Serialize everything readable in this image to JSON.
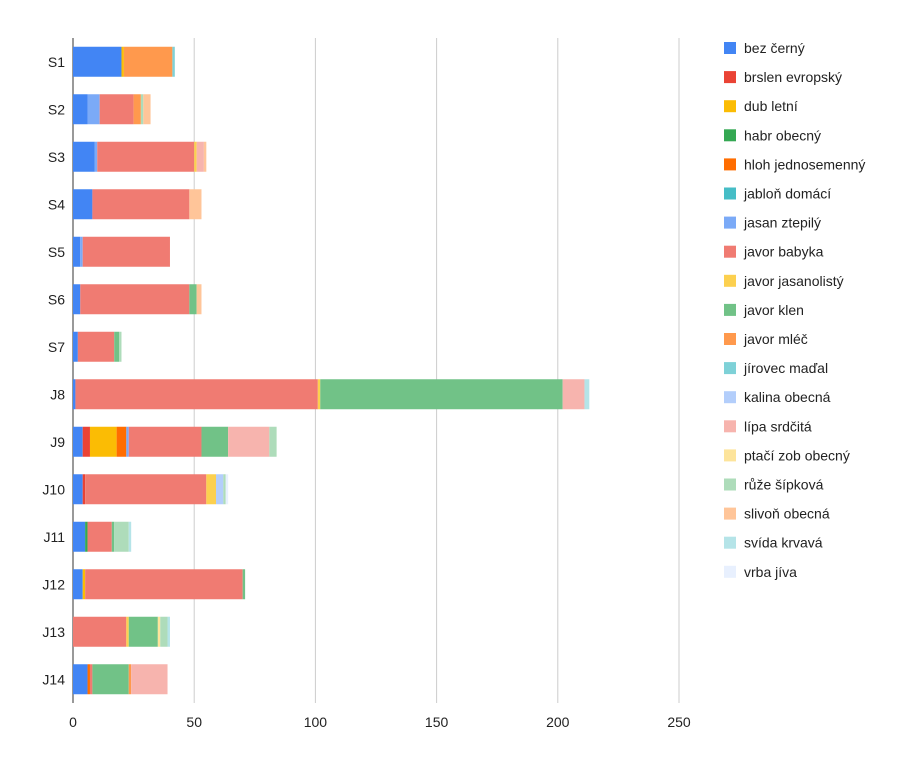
{
  "chart_data": {
    "type": "bar",
    "orientation": "horizontal",
    "stacked": true,
    "title": "",
    "xlabel": "",
    "ylabel": "",
    "xlim": [
      0,
      250
    ],
    "xticks": [
      0,
      50,
      100,
      150,
      200,
      250
    ],
    "grid": true,
    "legend_position": "right",
    "categories": [
      "S1",
      "S2",
      "S3",
      "S4",
      "S5",
      "S6",
      "S7",
      "J8",
      "J9",
      "J10",
      "J11",
      "J12",
      "J13",
      "J14"
    ],
    "series": [
      {
        "name": "bez černý",
        "color": "#4285f4",
        "values": [
          20,
          6,
          9,
          8,
          3,
          3,
          2,
          1,
          4,
          4,
          5,
          4,
          0,
          6
        ]
      },
      {
        "name": "brslen evropský",
        "color": "#ea4335",
        "values": [
          0,
          0,
          0,
          0,
          0,
          0,
          0,
          0,
          3,
          1,
          0,
          0,
          0,
          0
        ]
      },
      {
        "name": "dub letní",
        "color": "#fbbc04",
        "values": [
          1,
          0,
          0,
          0,
          0,
          0,
          0,
          0,
          11,
          0,
          0,
          1,
          0,
          0
        ]
      },
      {
        "name": "habr obecný",
        "color": "#34a853",
        "values": [
          0,
          0,
          0,
          0,
          0,
          0,
          0,
          0,
          0,
          0,
          1,
          0,
          0,
          0
        ]
      },
      {
        "name": "hloh jednosemenný",
        "color": "#ff6d01",
        "values": [
          0,
          0,
          0,
          0,
          0,
          0,
          0,
          0,
          4,
          0,
          0,
          0,
          0,
          1
        ]
      },
      {
        "name": "jabloň domácí",
        "color": "#46bdc6",
        "values": [
          0,
          0,
          0,
          0,
          0,
          0,
          0,
          0,
          0,
          0,
          0,
          0,
          0,
          0
        ]
      },
      {
        "name": "jasan ztepilý",
        "color": "#7baaf7",
        "values": [
          0,
          5,
          1,
          0,
          1,
          0,
          0,
          0,
          1,
          0,
          0,
          0,
          0,
          0
        ]
      },
      {
        "name": "javor babyka",
        "color": "#f07b72",
        "values": [
          0,
          14,
          40,
          40,
          36,
          45,
          15,
          100,
          30,
          50,
          10,
          65,
          22,
          1
        ]
      },
      {
        "name": "javor jasanolistý",
        "color": "#fcd04f",
        "values": [
          0,
          0,
          1,
          0,
          0,
          0,
          0,
          1,
          0,
          4,
          0,
          0,
          1,
          0
        ]
      },
      {
        "name": "javor klen",
        "color": "#71c287",
        "values": [
          0,
          0,
          0,
          0,
          0,
          3,
          2,
          100,
          11,
          0,
          1,
          1,
          12,
          15
        ]
      },
      {
        "name": "javor mléč",
        "color": "#ff994d",
        "values": [
          20,
          3,
          0,
          0,
          0,
          0,
          0,
          0,
          0,
          0,
          0,
          0,
          0,
          1
        ]
      },
      {
        "name": "jírovec maďal",
        "color": "#7ed1d7",
        "values": [
          1,
          0,
          0,
          0,
          0,
          0,
          0,
          0,
          0,
          0,
          0,
          0,
          0,
          0
        ]
      },
      {
        "name": "kalina obecná",
        "color": "#b3cefb",
        "values": [
          0,
          0,
          0,
          0,
          0,
          0,
          0,
          0,
          0,
          3,
          0,
          0,
          0,
          0
        ]
      },
      {
        "name": "lípa srdčitá",
        "color": "#f7b4ae",
        "values": [
          0,
          0,
          3,
          0,
          0,
          0,
          0,
          9,
          17,
          0,
          0,
          0,
          0,
          15
        ]
      },
      {
        "name": "ptačí zob obecný",
        "color": "#fde49b",
        "values": [
          0,
          0,
          0,
          0,
          0,
          0,
          0,
          0,
          0,
          0,
          0,
          0,
          1,
          0
        ]
      },
      {
        "name": "růže šípková",
        "color": "#aedcba",
        "values": [
          0,
          1,
          0,
          0,
          0,
          0,
          1,
          0,
          3,
          1,
          6,
          0,
          3,
          0
        ]
      },
      {
        "name": "slivoň obecná",
        "color": "#ffc599",
        "values": [
          0,
          3,
          1,
          5,
          0,
          2,
          0,
          0,
          0,
          0,
          0,
          0,
          0,
          0
        ]
      },
      {
        "name": "svída krvavá",
        "color": "#b5e4e8",
        "values": [
          0,
          0,
          0,
          0,
          0,
          0,
          0,
          2,
          0,
          0,
          1,
          0,
          1,
          0
        ]
      },
      {
        "name": "vrba jíva",
        "color": "#e8f0fe",
        "values": [
          0,
          0,
          0,
          0,
          0,
          0,
          0,
          0,
          0,
          1,
          0,
          0,
          0,
          0
        ]
      }
    ]
  }
}
